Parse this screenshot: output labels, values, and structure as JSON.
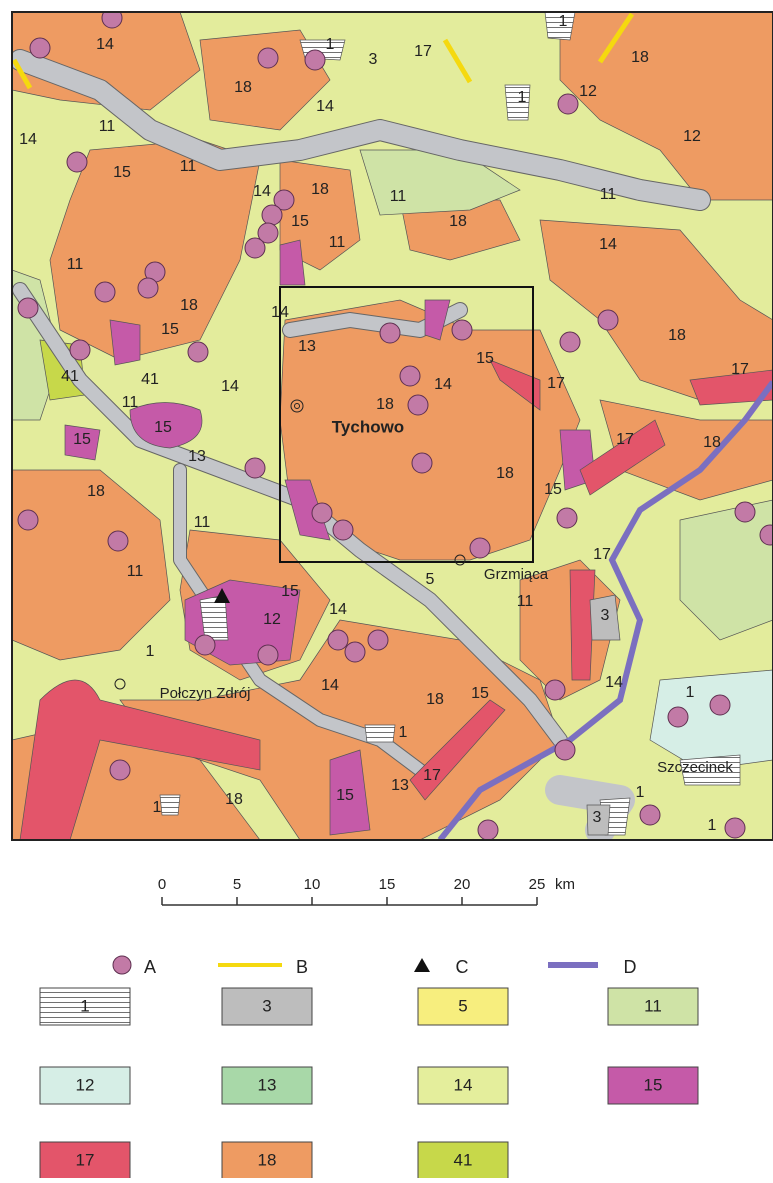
{
  "map": {
    "labels": [
      "14",
      "1",
      "3",
      "17",
      "1",
      "18",
      "12",
      "1",
      "18",
      "14",
      "11",
      "14",
      "15",
      "11",
      "12",
      "14",
      "18",
      "11",
      "11",
      "15",
      "11",
      "18",
      "14",
      "11",
      "18",
      "18",
      "15",
      "14",
      "13",
      "15",
      "14",
      "17",
      "17",
      "41",
      "41",
      "14",
      "11",
      "18",
      "15",
      "15",
      "17",
      "18",
      "13",
      "18",
      "15",
      "11",
      "18",
      "17",
      "5",
      "11",
      "3",
      "11",
      "15",
      "12",
      "14",
      "1",
      "14",
      "18",
      "15",
      "14",
      "1",
      "1",
      "17",
      "13",
      "15",
      "18",
      "1",
      "3",
      "1",
      "1"
    ],
    "places": [
      "Tychowo",
      "Grzmiąca",
      "Połczyn Zdrój",
      "Szczecinek"
    ]
  },
  "scale": {
    "ticks": [
      0,
      5,
      10,
      15,
      20,
      25
    ],
    "unit": "km"
  },
  "legend": {
    "symbols": [
      "A",
      "B",
      "C",
      "D"
    ],
    "units": [
      "1",
      "3",
      "5",
      "11",
      "12",
      "13",
      "14",
      "15",
      "17",
      "18",
      "41"
    ]
  }
}
